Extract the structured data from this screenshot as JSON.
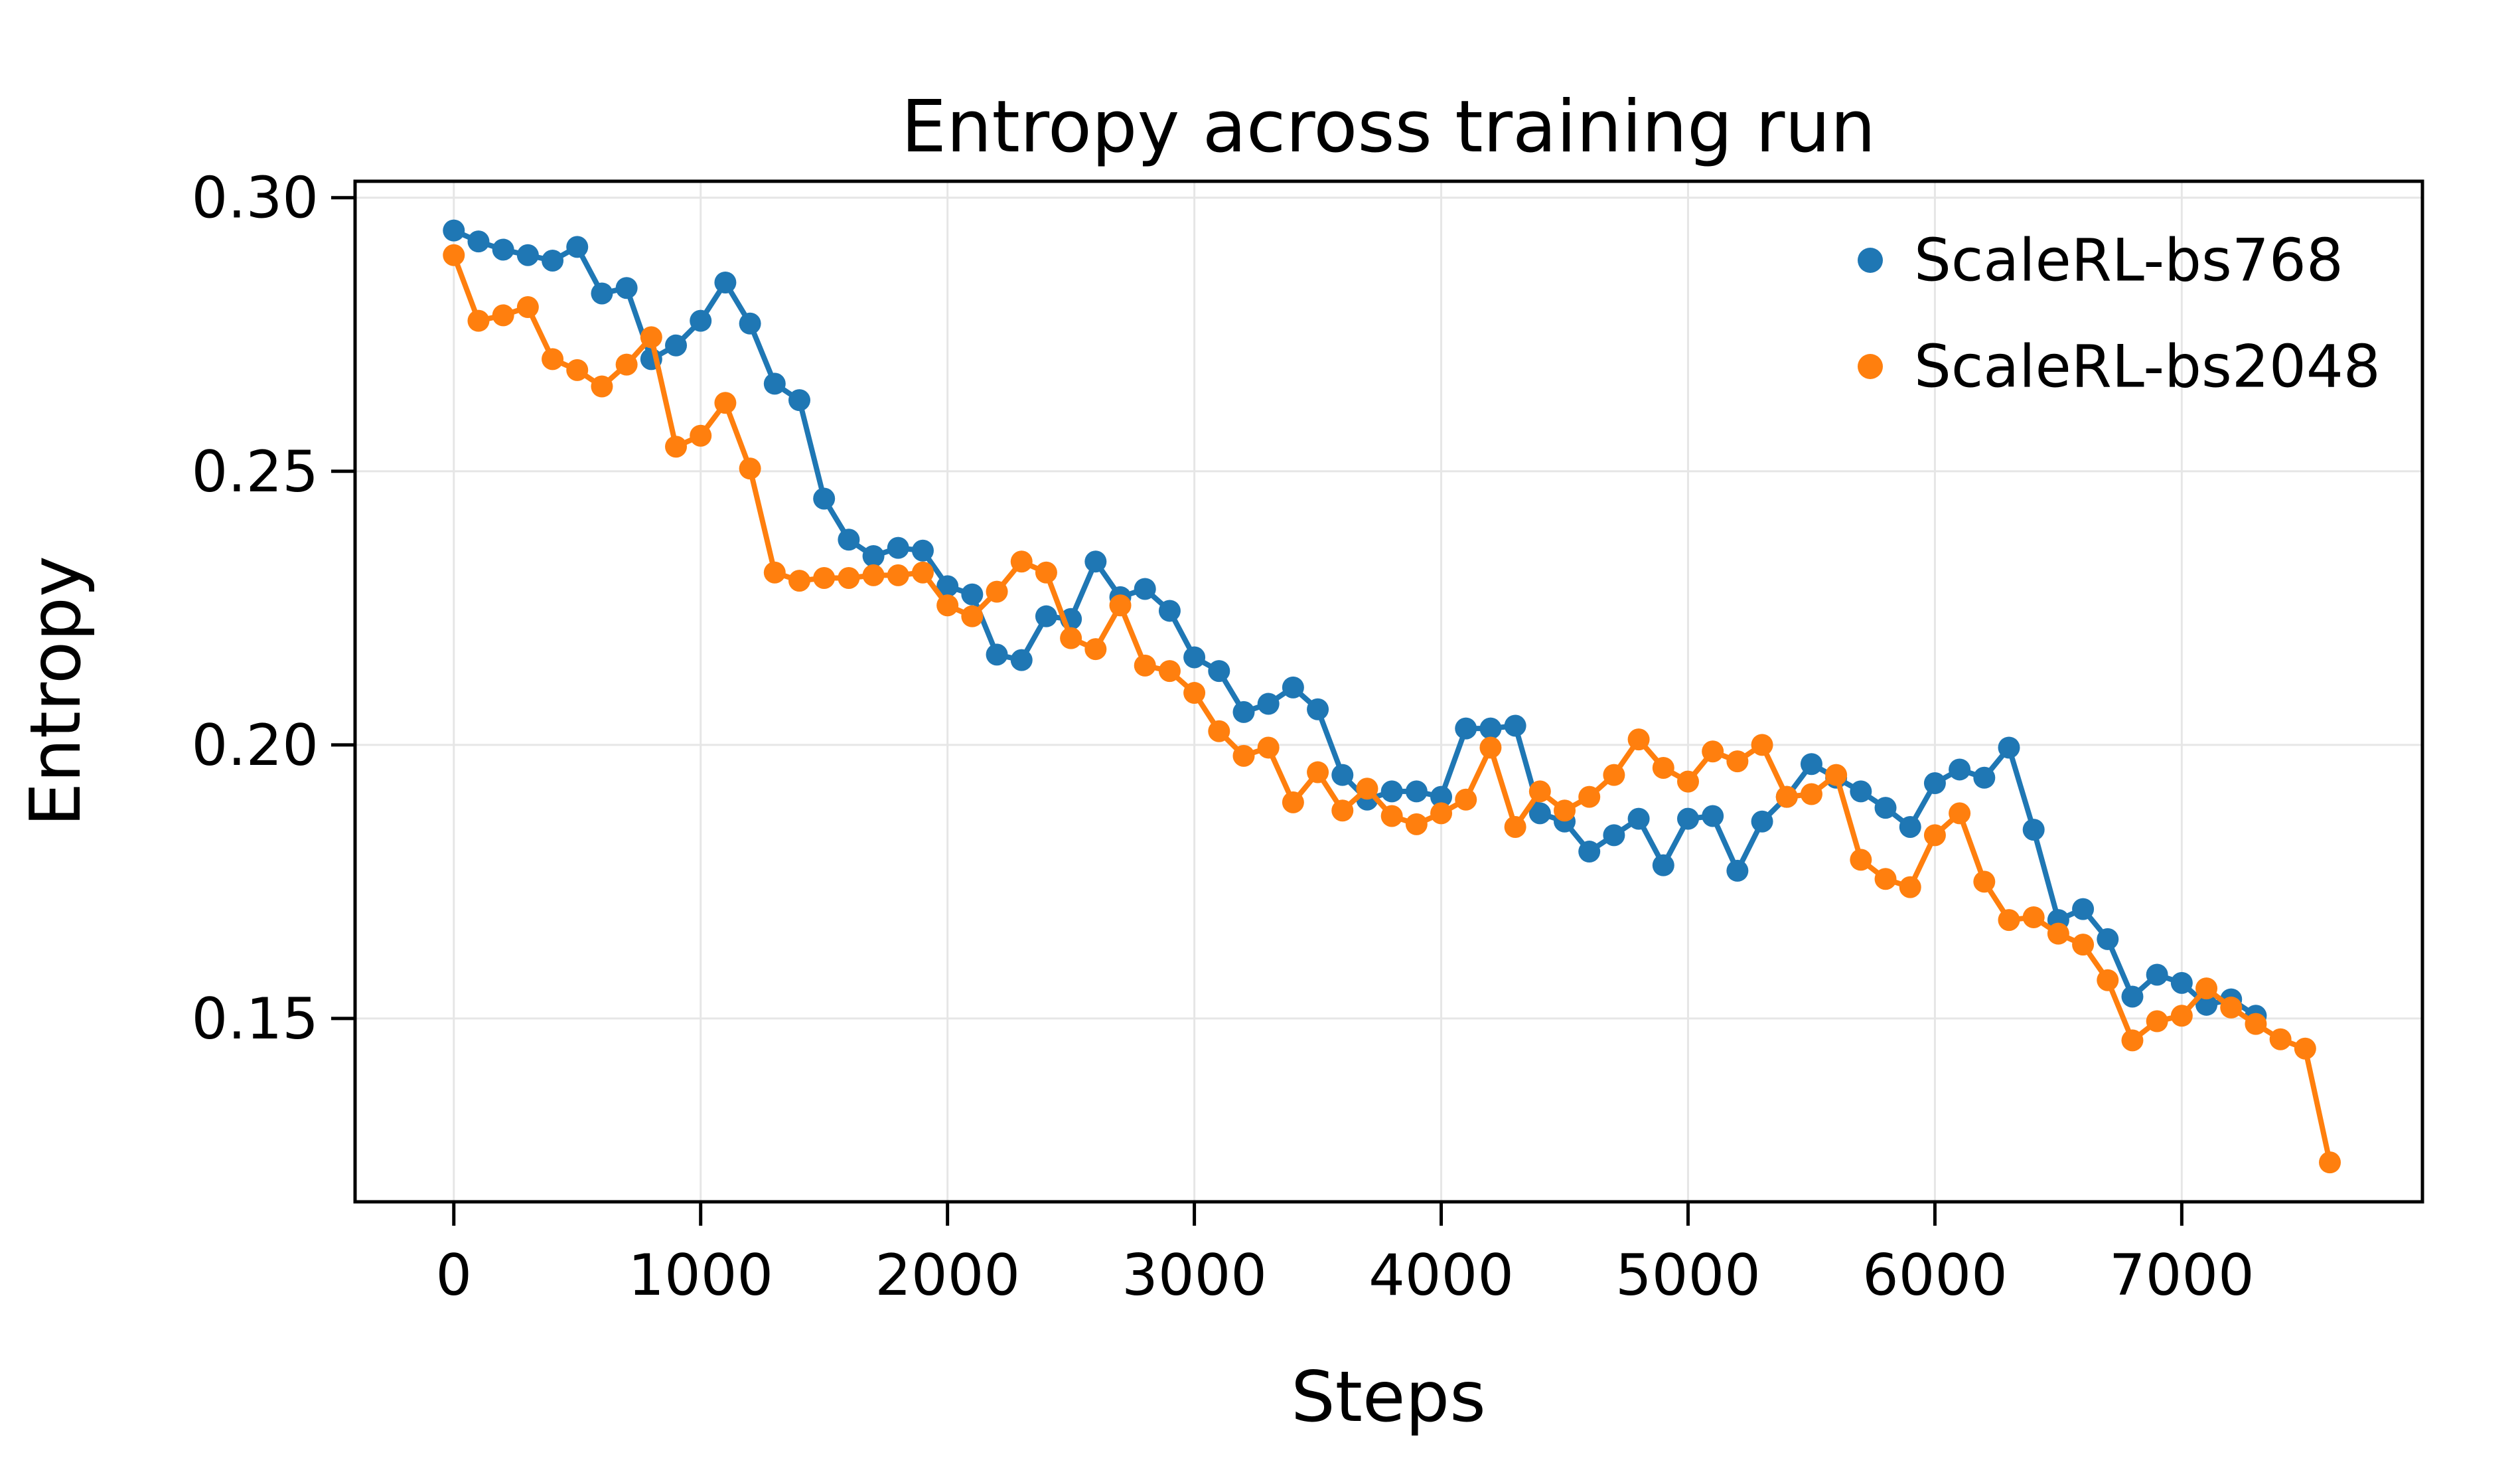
{
  "chart_data": {
    "type": "line",
    "title": "Entropy across training run",
    "xlabel": "Steps",
    "ylabel": "Entropy",
    "xlim": [
      -400,
      7975
    ],
    "ylim": [
      0.1165,
      0.303
    ],
    "xticks": [
      0,
      1000,
      2000,
      3000,
      4000,
      5000,
      6000,
      7000
    ],
    "xtick_labels": [
      "0",
      "1000",
      "2000",
      "3000",
      "4000",
      "5000",
      "6000",
      "7000"
    ],
    "yticks": [
      0.15,
      0.2,
      0.25,
      0.3
    ],
    "ytick_labels": [
      "0.15",
      "0.20",
      "0.25",
      "0.30"
    ],
    "grid": true,
    "legend_position": "upper right",
    "background_color": "#ffffff",
    "grid_color": "#e6e6e6",
    "spine_color": "#000000",
    "series": [
      {
        "name": "ScaleRL-bs768",
        "color": "#1f77b4",
        "marker": "circle",
        "x": [
          0,
          100,
          200,
          300,
          400,
          500,
          600,
          700,
          800,
          900,
          1000,
          1100,
          1200,
          1300,
          1400,
          1500,
          1600,
          1700,
          1800,
          1900,
          2000,
          2100,
          2200,
          2300,
          2400,
          2500,
          2600,
          2700,
          2800,
          2900,
          3000,
          3100,
          3200,
          3300,
          3400,
          3500,
          3600,
          3700,
          3800,
          3900,
          4000,
          4100,
          4200,
          4300,
          4400,
          4500,
          4600,
          4700,
          4800,
          4900,
          5000,
          5100,
          5200,
          5300,
          5400,
          5500,
          5600,
          5700,
          5800,
          5900,
          6000,
          6100,
          6200,
          6300,
          6400,
          6500,
          6600,
          6700,
          6800,
          6900,
          7000,
          7100,
          7200,
          7300
        ],
        "y": [
          0.294,
          0.292,
          0.2905,
          0.2895,
          0.2885,
          0.291,
          0.2825,
          0.2835,
          0.2705,
          0.273,
          0.2775,
          0.2845,
          0.277,
          0.266,
          0.263,
          0.245,
          0.2375,
          0.2345,
          0.236,
          0.2355,
          0.229,
          0.2275,
          0.2165,
          0.2155,
          0.2235,
          0.223,
          0.2335,
          0.227,
          0.2285,
          0.2245,
          0.216,
          0.2135,
          0.206,
          0.2075,
          0.2105,
          0.2065,
          0.1945,
          0.19,
          0.1915,
          0.1915,
          0.1905,
          0.203,
          0.203,
          0.2035,
          0.1875,
          0.186,
          0.1805,
          0.1835,
          0.1865,
          0.178,
          0.1865,
          0.187,
          0.177,
          0.186,
          0.1905,
          0.1965,
          0.194,
          0.1915,
          0.1885,
          0.185,
          0.193,
          0.1955,
          0.194,
          0.1995,
          0.1845,
          0.168,
          0.17,
          0.1645,
          0.154,
          0.158,
          0.1565,
          0.1525,
          0.1535,
          0.1505
        ]
      },
      {
        "name": "ScaleRL-bs2048",
        "color": "#ff7f0e",
        "marker": "circle",
        "x": [
          0,
          100,
          200,
          300,
          400,
          500,
          600,
          700,
          800,
          900,
          1000,
          1100,
          1200,
          1300,
          1400,
          1500,
          1600,
          1700,
          1800,
          1900,
          2000,
          2100,
          2200,
          2300,
          2400,
          2500,
          2600,
          2700,
          2800,
          2900,
          3000,
          3100,
          3200,
          3300,
          3400,
          3500,
          3600,
          3700,
          3800,
          3900,
          4000,
          4100,
          4200,
          4300,
          4400,
          4500,
          4600,
          4700,
          4800,
          4900,
          5000,
          5100,
          5200,
          5300,
          5400,
          5500,
          5600,
          5700,
          5800,
          5900,
          6000,
          6100,
          6200,
          6300,
          6400,
          6500,
          6600,
          6700,
          6800,
          6900,
          7000,
          7100,
          7200,
          7300,
          7400,
          7500,
          7600
        ],
        "y": [
          0.2895,
          0.2775,
          0.2785,
          0.28,
          0.2705,
          0.2685,
          0.2655,
          0.2695,
          0.2745,
          0.2545,
          0.2565,
          0.2625,
          0.2505,
          0.2315,
          0.23,
          0.2305,
          0.2305,
          0.231,
          0.231,
          0.2315,
          0.2255,
          0.2235,
          0.228,
          0.2335,
          0.2315,
          0.2195,
          0.2175,
          0.2255,
          0.2145,
          0.2135,
          0.2095,
          0.2025,
          0.198,
          0.1995,
          0.1895,
          0.195,
          0.188,
          0.192,
          0.187,
          0.1855,
          0.1875,
          0.19,
          0.1995,
          0.185,
          0.1915,
          0.188,
          0.1905,
          0.1945,
          0.201,
          0.1958,
          0.1933,
          0.1988,
          0.197,
          0.2,
          0.1905,
          0.191,
          0.1945,
          0.179,
          0.1755,
          0.174,
          0.1835,
          0.1875,
          0.175,
          0.168,
          0.1685,
          0.1655,
          0.1635,
          0.157,
          0.146,
          0.1495,
          0.1505,
          0.1555,
          0.152,
          0.149,
          0.1462,
          0.1445,
          0.1237
        ]
      }
    ]
  }
}
